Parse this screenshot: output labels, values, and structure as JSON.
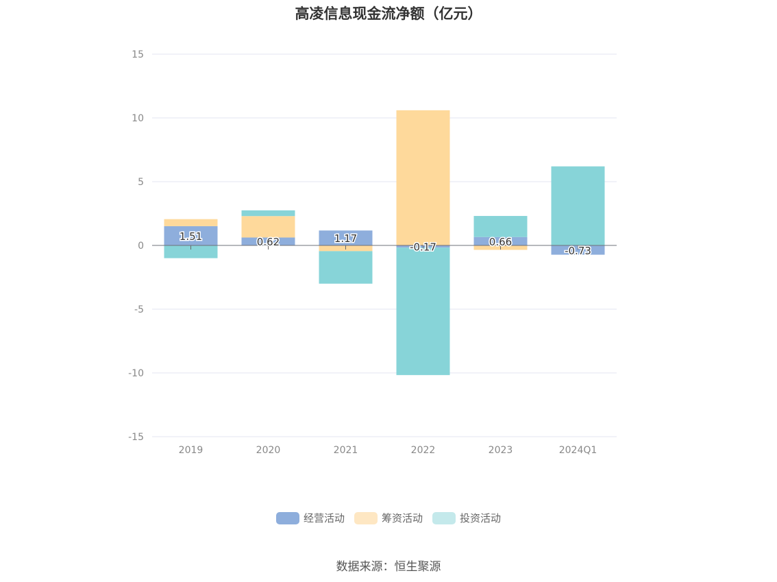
{
  "chart_data": {
    "type": "bar",
    "stacked": true,
    "title": "高凌信息现金流净额（亿元）",
    "xlabel": "",
    "ylabel": "",
    "ylim": [
      -15,
      15
    ],
    "yticks": [
      "15",
      "10",
      "5",
      "0",
      "-5",
      "-10",
      "-15"
    ],
    "categories": [
      "2019",
      "2020",
      "2021",
      "2022",
      "2023",
      "2024Q1"
    ],
    "series": [
      {
        "name": "经营活动",
        "color": "#8eaedc",
        "values": [
          1.51,
          0.62,
          1.17,
          -0.17,
          0.66,
          -0.73
        ]
      },
      {
        "name": "筹资活动",
        "color": "#fed99b",
        "values": [
          0.55,
          1.68,
          -0.45,
          10.6,
          -0.35,
          0.0
        ]
      },
      {
        "name": "投资活动",
        "color": "#87d4d8",
        "values": [
          -1.0,
          0.45,
          -2.55,
          -10.0,
          1.65,
          6.2
        ]
      }
    ],
    "data_labels": [
      "1.51",
      "0.62",
      "1.17",
      "-0.17",
      "0.66",
      "-0.73"
    ],
    "grid": true,
    "legend_position": "bottom"
  },
  "source_text": "数据来源：恒生聚源"
}
